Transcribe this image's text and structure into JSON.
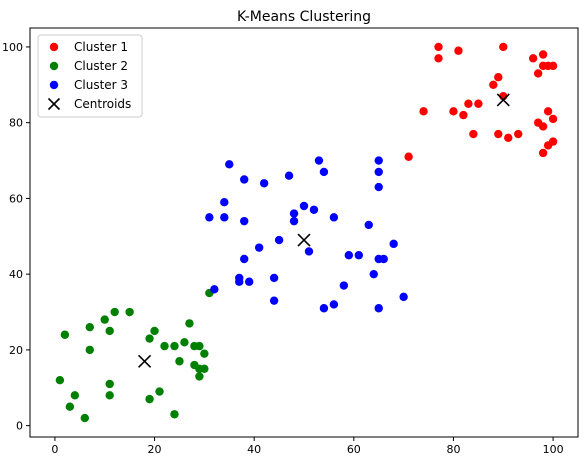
{
  "chart_data": {
    "type": "scatter",
    "title": "K-Means Clustering",
    "xlabel": "",
    "ylabel": "",
    "xlim": [
      -5,
      105
    ],
    "ylim": [
      -3,
      105
    ],
    "xticks": [
      0,
      20,
      40,
      60,
      80,
      100
    ],
    "yticks": [
      0,
      20,
      40,
      60,
      80,
      100
    ],
    "grid": false,
    "legend_position": "top-left",
    "series": [
      {
        "name": "Cluster 1",
        "color": "#ff0000",
        "marker": "circle",
        "points": [
          [
            77,
            100
          ],
          [
            77,
            97
          ],
          [
            81,
            99
          ],
          [
            90,
            100
          ],
          [
            96,
            97
          ],
          [
            98,
            98
          ],
          [
            99,
            95
          ],
          [
            98,
            95
          ],
          [
            100,
            95
          ],
          [
            97,
            93
          ],
          [
            88,
            90
          ],
          [
            89,
            92
          ],
          [
            90,
            87
          ],
          [
            80,
            83
          ],
          [
            82,
            82
          ],
          [
            83,
            85
          ],
          [
            85,
            85
          ],
          [
            74,
            83
          ],
          [
            99,
            83
          ],
          [
            84,
            77
          ],
          [
            89,
            77
          ],
          [
            91,
            76
          ],
          [
            93,
            77
          ],
          [
            97,
            80
          ],
          [
            98,
            79
          ],
          [
            100,
            81
          ],
          [
            98,
            72
          ],
          [
            99,
            74
          ],
          [
            100,
            75
          ],
          [
            71,
            71
          ]
        ]
      },
      {
        "name": "Cluster 2",
        "color": "#008000",
        "marker": "circle",
        "points": [
          [
            2,
            24
          ],
          [
            7,
            26
          ],
          [
            10,
            28
          ],
          [
            12,
            30
          ],
          [
            15,
            30
          ],
          [
            11,
            25
          ],
          [
            7,
            20
          ],
          [
            20,
            25
          ],
          [
            19,
            23
          ],
          [
            22,
            21
          ],
          [
            24,
            21
          ],
          [
            26,
            22
          ],
          [
            27,
            27
          ],
          [
            28,
            21
          ],
          [
            29,
            21
          ],
          [
            30,
            19
          ],
          [
            25,
            17
          ],
          [
            28,
            16
          ],
          [
            29,
            15
          ],
          [
            30,
            15
          ],
          [
            29,
            13
          ],
          [
            31,
            35
          ],
          [
            1,
            12
          ],
          [
            11,
            11
          ],
          [
            4,
            8
          ],
          [
            11,
            8
          ],
          [
            19,
            7
          ],
          [
            21,
            9
          ],
          [
            3,
            5
          ],
          [
            6,
            2
          ],
          [
            24,
            3
          ]
        ]
      },
      {
        "name": "Cluster 3",
        "color": "#0000ff",
        "marker": "circle",
        "points": [
          [
            35,
            69
          ],
          [
            38,
            65
          ],
          [
            42,
            64
          ],
          [
            34,
            59
          ],
          [
            31,
            55
          ],
          [
            34,
            55
          ],
          [
            38,
            54
          ],
          [
            47,
            66
          ],
          [
            53,
            70
          ],
          [
            54,
            67
          ],
          [
            65,
            70
          ],
          [
            65,
            67
          ],
          [
            65,
            63
          ],
          [
            50,
            58
          ],
          [
            52,
            57
          ],
          [
            48,
            56
          ],
          [
            48,
            54
          ],
          [
            56,
            55
          ],
          [
            51,
            46
          ],
          [
            45,
            49
          ],
          [
            41,
            47
          ],
          [
            38,
            44
          ],
          [
            59,
            45
          ],
          [
            61,
            45
          ],
          [
            63,
            53
          ],
          [
            65,
            44
          ],
          [
            66,
            44
          ],
          [
            68,
            48
          ],
          [
            64,
            40
          ],
          [
            37,
            39
          ],
          [
            37,
            38
          ],
          [
            39,
            38
          ],
          [
            44,
            39
          ],
          [
            32,
            36
          ],
          [
            44,
            33
          ],
          [
            58,
            37
          ],
          [
            54,
            31
          ],
          [
            56,
            32
          ],
          [
            65,
            31
          ],
          [
            70,
            34
          ]
        ]
      },
      {
        "name": "Centroids",
        "color": "#000000",
        "marker": "x",
        "points": [
          [
            90,
            86
          ],
          [
            18,
            17
          ],
          [
            50,
            49
          ]
        ]
      }
    ]
  }
}
